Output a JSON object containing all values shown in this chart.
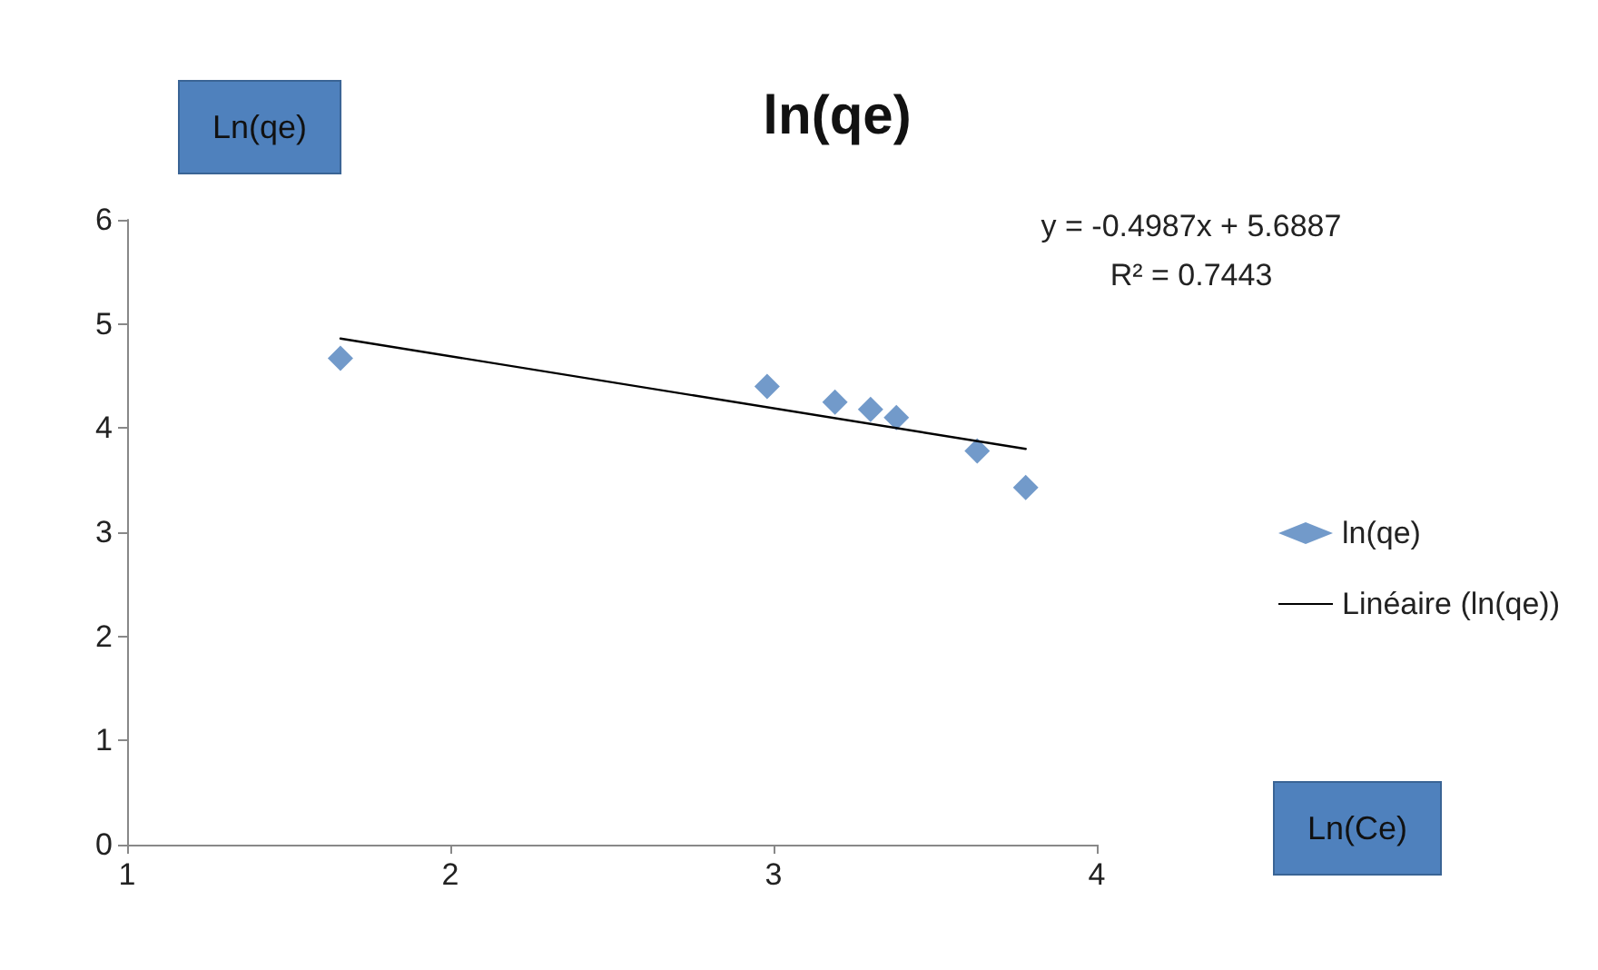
{
  "chart_data": {
    "type": "scatter",
    "title": "ln(qe)",
    "ylabel": "Ln(qe)",
    "xlim": [
      1,
      4
    ],
    "xticks": [
      1,
      2,
      3,
      4
    ],
    "ylim": [
      0,
      6
    ],
    "yticks": [
      0,
      1,
      2,
      3,
      4,
      5,
      6
    ],
    "grid": false,
    "legend": "right",
    "marker": "diamond",
    "annotations": [
      "y = -0.4987x + 5.6887",
      "R² = 0.7443",
      "Ln(Ce)"
    ],
    "series": [
      {
        "name": "ln(qe)",
        "color": "#4f81bd",
        "x": [
          1.66,
          2.98,
          3.19,
          3.3,
          3.38,
          3.63,
          3.78
        ],
        "values": [
          4.67,
          4.4,
          4.25,
          4.18,
          4.1,
          3.78,
          3.43
        ]
      },
      {
        "name": "Linéaire (ln(qe))",
        "type": "line",
        "color": "#000000",
        "marker": "none",
        "line_style": "solid",
        "x": [
          1.66,
          3.78
        ],
        "values": [
          4.86,
          3.8
        ]
      }
    ]
  }
}
